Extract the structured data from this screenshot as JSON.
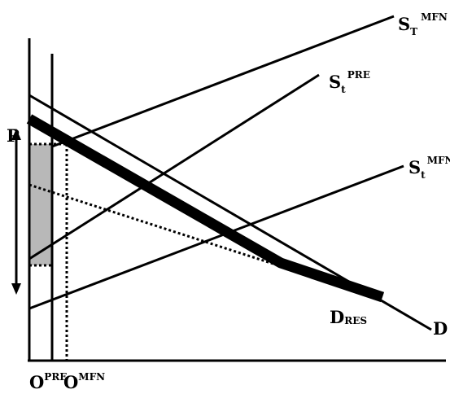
{
  "labels": {
    "price": "P",
    "origin_pre": {
      "base": "O",
      "sup": "PRE"
    },
    "origin_mfn": {
      "base": "O",
      "sup": "MFN"
    },
    "supply_total_mfn": {
      "base": "S",
      "sub": "T",
      "sup": "MFN"
    },
    "supply_t_pre": {
      "base": "S",
      "sub": "t",
      "sup": "PRE"
    },
    "supply_t_mfn": {
      "base": "S",
      "sub": "t",
      "sup": "MFN"
    },
    "demand_residual": {
      "base": "D",
      "sub": "RES"
    },
    "demand": "D"
  },
  "colors": {
    "ink": "#000000",
    "shade": "#b8b8b8",
    "background": "#ffffff"
  }
}
